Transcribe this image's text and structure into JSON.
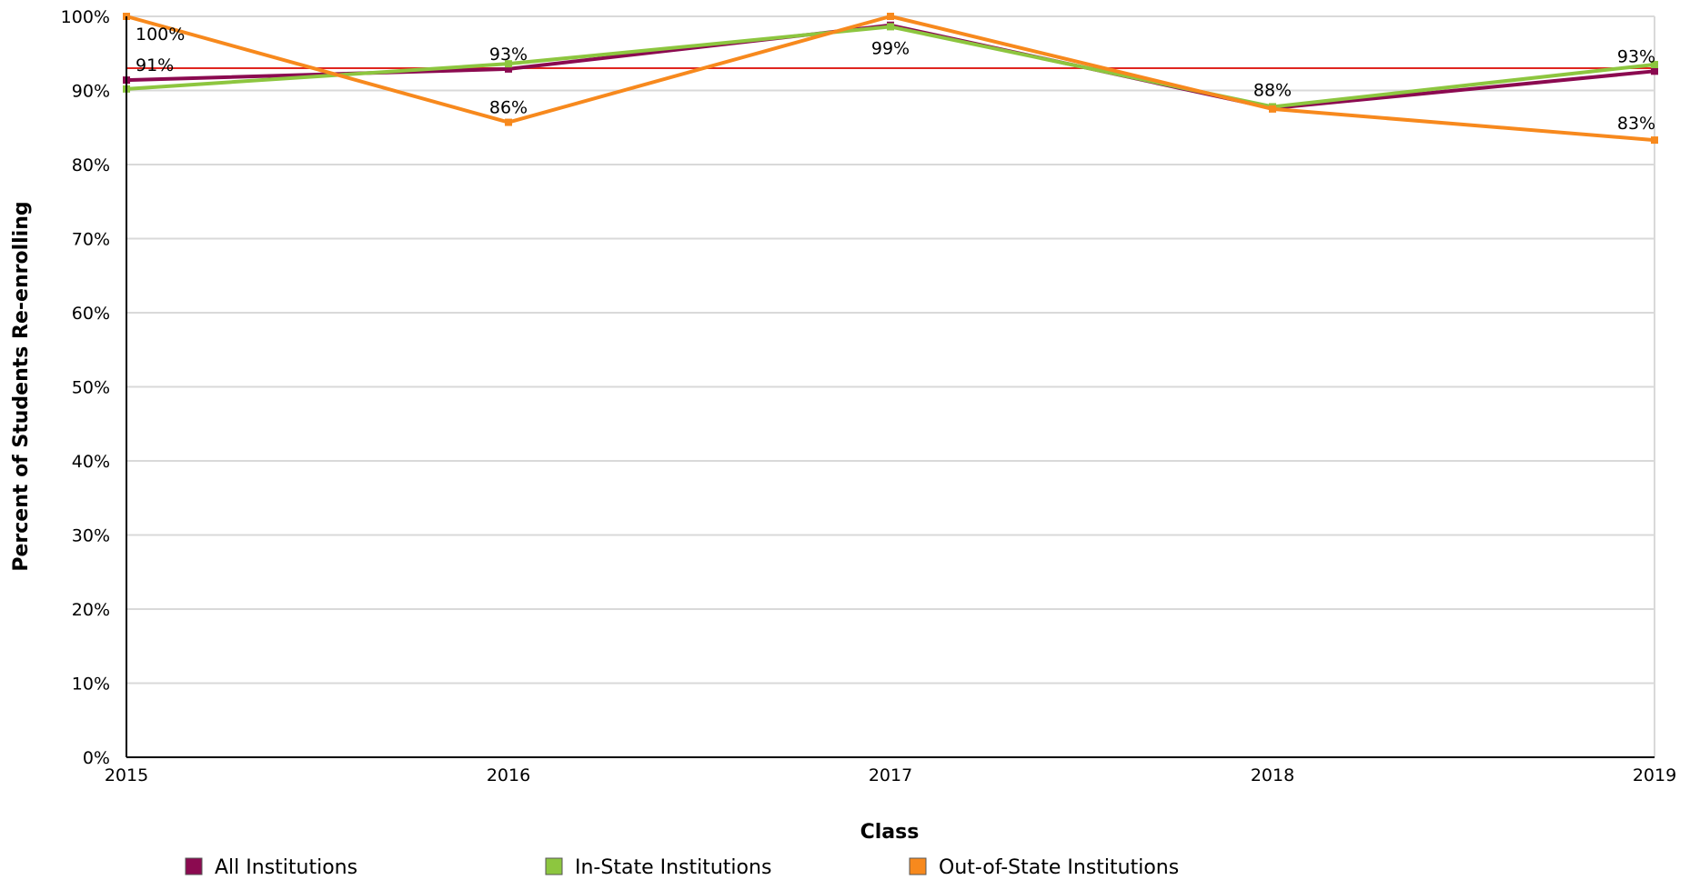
{
  "chart_data": {
    "type": "line",
    "categories": [
      "2015",
      "2016",
      "2017",
      "2018",
      "2019"
    ],
    "xlabel": "Class",
    "ylabel": "Percent of Students Re-enrolling",
    "ylim": [
      0,
      100
    ],
    "yticks": [
      "0%",
      "10%",
      "20%",
      "30%",
      "40%",
      "50%",
      "60%",
      "70%",
      "80%",
      "90%",
      "100%"
    ],
    "grid": true,
    "legend_position": "bottom",
    "reference_line": {
      "value": 93,
      "color": "#e0261f"
    },
    "series": [
      {
        "name": "All Institutions",
        "color": "#8b0a50",
        "values": [
          91.4,
          92.9,
          98.8,
          87.6,
          92.6
        ],
        "labels": [
          "91%",
          "93%",
          "",
          "",
          "93%"
        ]
      },
      {
        "name": "In-State Institutions",
        "color": "#8dc63f",
        "values": [
          90.2,
          93.6,
          98.6,
          87.8,
          93.5
        ],
        "labels": [
          "",
          "",
          "99%",
          "88%",
          ""
        ]
      },
      {
        "name": "Out-of-State Institutions",
        "color": "#f7891d",
        "values": [
          100,
          85.7,
          100,
          87.5,
          83.3
        ],
        "labels": [
          "100%",
          "86%",
          "",
          "",
          "83%"
        ]
      }
    ]
  }
}
